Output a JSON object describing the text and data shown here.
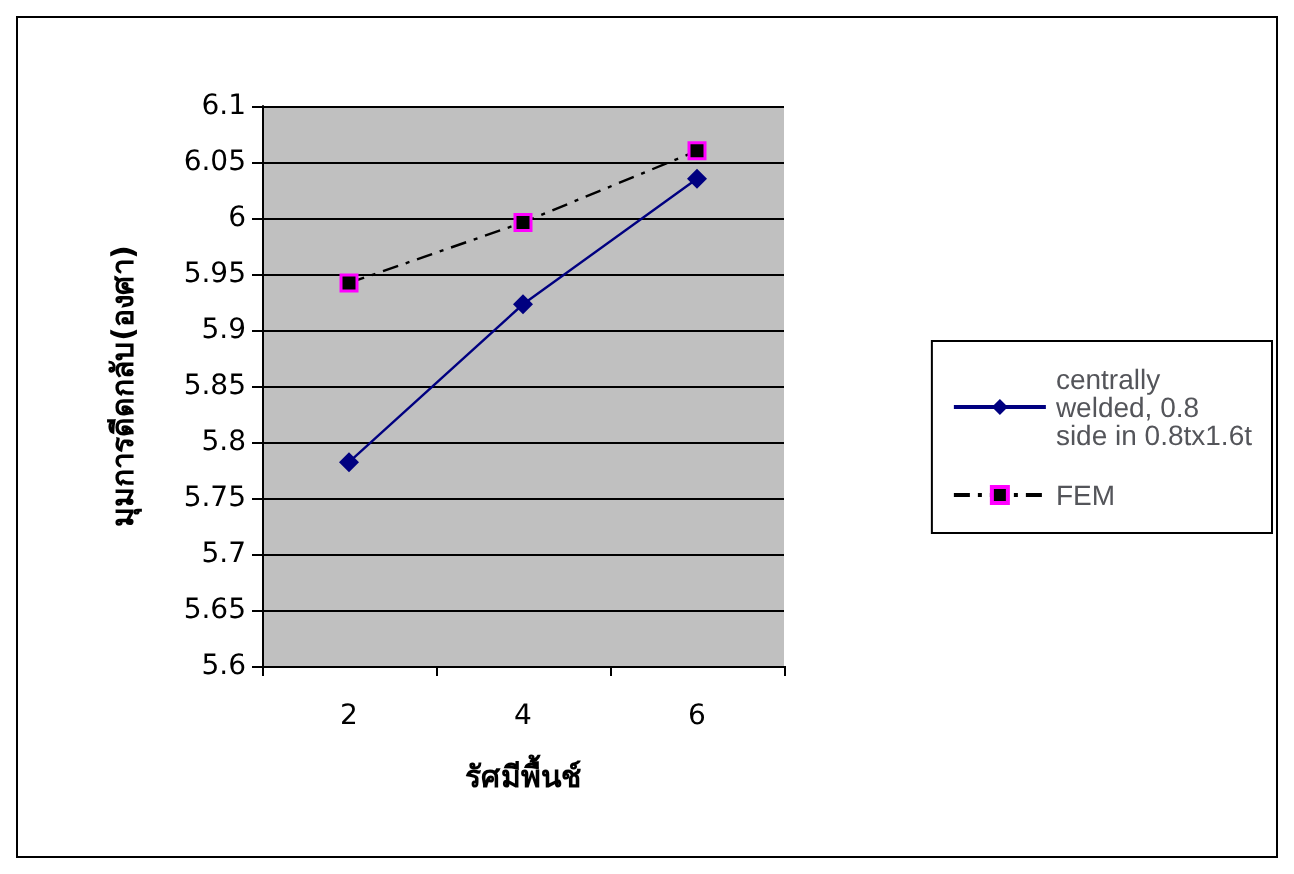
{
  "chart_data": {
    "type": "line",
    "xlabel": "รัศมีพื้นช์",
    "ylabel": "มุมการดีดกลับ(องศา)",
    "categories": [
      "2",
      "4",
      "6"
    ],
    "series": [
      {
        "name": "centrally welded, 0.8 side in 0.8tx1.6t",
        "color": "#000080",
        "values": [
          5.782,
          5.923,
          6.035
        ],
        "marker": "diamond",
        "line_style": "solid"
      },
      {
        "name": "FEM",
        "color": "#000000",
        "values": [
          5.942,
          5.996,
          6.06
        ],
        "marker": "square",
        "line_style": "dashed"
      }
    ],
    "ylim": [
      5.6,
      6.1
    ],
    "yticks": [
      5.6,
      5.65,
      5.7,
      5.75,
      5.8,
      5.85,
      5.9,
      5.95,
      6,
      6.05,
      6.1
    ],
    "grid": "y",
    "legend": "right"
  }
}
